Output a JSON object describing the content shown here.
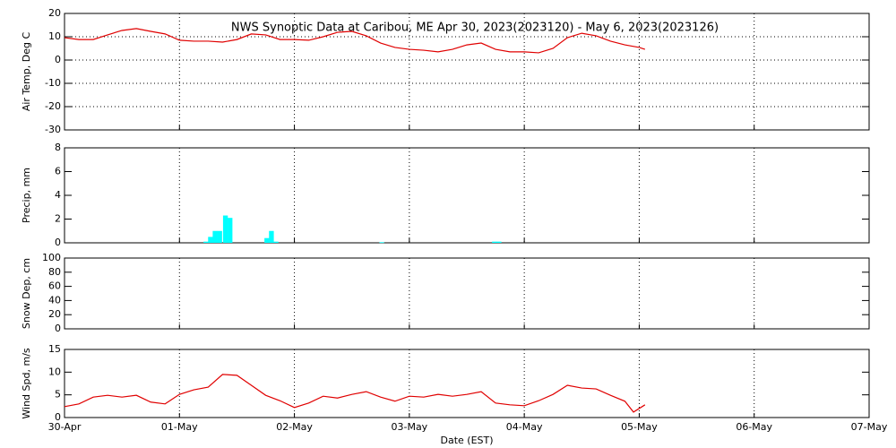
{
  "chart_data": [
    {
      "type": "line",
      "title": "NWS Synoptic Data at Caribou, ME   Apr 30, 2023(2023120) - May  6, 2023(2023126)",
      "ylabel": "Air Temp, Deg C",
      "xlim": [
        0,
        7
      ],
      "ylim": [
        -30,
        20
      ],
      "yticks": [
        20,
        10,
        0,
        -10,
        -20,
        -30
      ],
      "grid": "both",
      "x": [
        0,
        0.125,
        0.25,
        0.375,
        0.5,
        0.625,
        0.75,
        0.875,
        1.0,
        1.125,
        1.25,
        1.375,
        1.5,
        1.625,
        1.75,
        1.875,
        2.0,
        2.125,
        2.25,
        2.375,
        2.5,
        2.625,
        2.75,
        2.875,
        3.0,
        3.125,
        3.25,
        3.375,
        3.5,
        3.625,
        3.75,
        3.875,
        4.0,
        4.125,
        4.25,
        4.375,
        4.5,
        4.625,
        4.75,
        4.875,
        5.0,
        5.05
      ],
      "series": [
        {
          "color": "#e00000",
          "values": [
            9.6,
            8.8,
            8.8,
            10.8,
            12.7,
            13.5,
            12.3,
            11.2,
            8.5,
            8.1,
            8.1,
            7.7,
            8.8,
            11.2,
            10.8,
            8.8,
            8.8,
            8.5,
            10,
            11.9,
            12.3,
            10.4,
            7.3,
            5.4,
            4.6,
            4.2,
            3.5,
            4.6,
            6.5,
            7.3,
            4.6,
            3.5,
            3.5,
            3.1,
            5,
            9.6,
            11.5,
            10.4,
            8.1,
            6.5,
            5.4,
            4.6
          ]
        }
      ]
    },
    {
      "type": "bar",
      "ylabel": "Precip, mm",
      "xlim": [
        0,
        7
      ],
      "ylim": [
        0,
        8
      ],
      "yticks": [
        0,
        2,
        4,
        6,
        8
      ],
      "grid": "x",
      "x": [
        1.23,
        1.27,
        1.31,
        1.35,
        1.4,
        1.44,
        1.76,
        1.8,
        1.84,
        2.76,
        3.74,
        3.78
      ],
      "series": [
        {
          "color": "#00ffff",
          "values": [
            0.1,
            0.5,
            1.0,
            1.0,
            2.3,
            2.1,
            0.4,
            1.0,
            0.1,
            0.05,
            0.1,
            0.1
          ]
        }
      ]
    },
    {
      "type": "line",
      "ylabel": "Snow Dep, cm",
      "xlim": [
        0,
        7
      ],
      "ylim": [
        0,
        100
      ],
      "yticks": [
        0,
        20,
        40,
        60,
        80,
        100
      ],
      "grid": "x",
      "x": [],
      "series": [
        {
          "color": "#e00000",
          "values": []
        }
      ]
    },
    {
      "type": "line",
      "ylabel": "Wind Spd, m/s",
      "xlabel": "Date (EST)",
      "xlim": [
        0,
        7
      ],
      "ylim": [
        0,
        15
      ],
      "yticks": [
        0,
        5,
        10,
        15
      ],
      "grid": "x",
      "xticks": [
        {
          "value": 0,
          "label": "30-Apr"
        },
        {
          "value": 1,
          "label": "01-May"
        },
        {
          "value": 2,
          "label": "02-May"
        },
        {
          "value": 3,
          "label": "03-May"
        },
        {
          "value": 4,
          "label": "04-May"
        },
        {
          "value": 5,
          "label": "05-May"
        },
        {
          "value": 6,
          "label": "06-May"
        },
        {
          "value": 7,
          "label": "07-May"
        }
      ],
      "x": [
        0,
        0.125,
        0.25,
        0.375,
        0.5,
        0.625,
        0.75,
        0.875,
        1.0,
        1.125,
        1.25,
        1.375,
        1.5,
        1.625,
        1.75,
        1.875,
        2.0,
        2.125,
        2.25,
        2.375,
        2.5,
        2.625,
        2.75,
        2.875,
        3.0,
        3.125,
        3.25,
        3.375,
        3.5,
        3.625,
        3.75,
        3.875,
        4.0,
        4.125,
        4.25,
        4.375,
        4.5,
        4.625,
        4.75,
        4.875,
        4.95,
        5.05
      ],
      "series": [
        {
          "color": "#e00000",
          "values": [
            2.4,
            3,
            4.5,
            4.9,
            4.5,
            4.9,
            3.4,
            3,
            5.1,
            6.1,
            6.7,
            9.5,
            9.3,
            7.1,
            4.9,
            3.7,
            2.2,
            3.2,
            4.7,
            4.3,
            5.1,
            5.7,
            4.5,
            3.6,
            4.7,
            4.5,
            5.1,
            4.7,
            5.1,
            5.7,
            3.2,
            2.8,
            2.6,
            3.7,
            5.1,
            7.1,
            6.5,
            6.3,
            4.9,
            3.6,
            1.2,
            2.8
          ]
        }
      ]
    }
  ]
}
